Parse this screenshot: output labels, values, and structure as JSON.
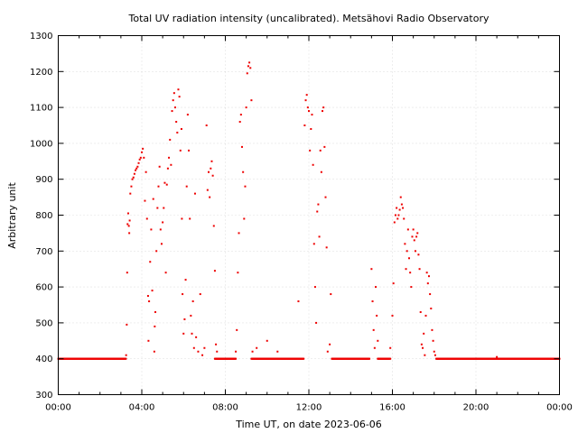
{
  "chart_data": {
    "type": "scatter",
    "title": "Total UV radiation intensity (uncalibrated). Metsähovi Radio Observatory",
    "xlabel": "Time UT, on date 2023-06-06",
    "ylabel": "Arbitrary unit",
    "xlim": [
      "00:00",
      "24:00"
    ],
    "ylim": [
      300,
      1300
    ],
    "x_ticks": [
      "00:00",
      "04:00",
      "08:00",
      "12:00",
      "16:00",
      "20:00",
      "00:00"
    ],
    "y_ticks": [
      300,
      400,
      500,
      600,
      700,
      800,
      900,
      1000,
      1100,
      1200,
      1300
    ],
    "grid": true,
    "marker_color": "#ee0000",
    "series": [
      {
        "baseline_value": 400,
        "baseline_ranges_hours": [
          [
            0.0,
            3.25
          ],
          [
            7.5,
            8.5
          ],
          [
            9.25,
            11.75
          ],
          [
            13.1,
            14.9
          ],
          [
            15.3,
            15.9
          ],
          [
            18.1,
            24.0
          ]
        ],
        "points": [
          [
            3.25,
            410
          ],
          [
            3.28,
            495
          ],
          [
            3.3,
            640
          ],
          [
            3.32,
            775
          ],
          [
            3.35,
            805
          ],
          [
            3.38,
            770
          ],
          [
            3.4,
            750
          ],
          [
            3.42,
            785
          ],
          [
            3.45,
            860
          ],
          [
            3.5,
            880
          ],
          [
            3.55,
            900
          ],
          [
            3.6,
            905
          ],
          [
            3.65,
            915
          ],
          [
            3.7,
            925
          ],
          [
            3.75,
            930
          ],
          [
            3.8,
            935
          ],
          [
            3.85,
            945
          ],
          [
            3.9,
            955
          ],
          [
            3.95,
            960
          ],
          [
            4.0,
            975
          ],
          [
            4.05,
            985
          ],
          [
            4.1,
            960
          ],
          [
            4.15,
            840
          ],
          [
            4.2,
            920
          ],
          [
            4.25,
            790
          ],
          [
            4.3,
            575
          ],
          [
            4.32,
            450
          ],
          [
            4.35,
            560
          ],
          [
            4.4,
            670
          ],
          [
            4.45,
            760
          ],
          [
            4.5,
            590
          ],
          [
            4.55,
            845
          ],
          [
            4.6,
            420
          ],
          [
            4.62,
            490
          ],
          [
            4.65,
            530
          ],
          [
            4.7,
            700
          ],
          [
            4.75,
            820
          ],
          [
            4.8,
            880
          ],
          [
            4.85,
            935
          ],
          [
            4.9,
            760
          ],
          [
            4.95,
            720
          ],
          [
            5.0,
            780
          ],
          [
            5.05,
            820
          ],
          [
            5.1,
            890
          ],
          [
            5.15,
            640
          ],
          [
            5.2,
            885
          ],
          [
            5.25,
            930
          ],
          [
            5.3,
            960
          ],
          [
            5.35,
            1010
          ],
          [
            5.4,
            940
          ],
          [
            5.45,
            1090
          ],
          [
            5.5,
            1120
          ],
          [
            5.55,
            1140
          ],
          [
            5.6,
            1100
          ],
          [
            5.65,
            1060
          ],
          [
            5.7,
            1030
          ],
          [
            5.75,
            1150
          ],
          [
            5.8,
            1130
          ],
          [
            5.85,
            980
          ],
          [
            5.9,
            1040
          ],
          [
            5.92,
            790
          ],
          [
            5.95,
            580
          ],
          [
            6.0,
            470
          ],
          [
            6.05,
            510
          ],
          [
            6.1,
            620
          ],
          [
            6.15,
            880
          ],
          [
            6.2,
            1080
          ],
          [
            6.25,
            980
          ],
          [
            6.3,
            790
          ],
          [
            6.35,
            520
          ],
          [
            6.4,
            470
          ],
          [
            6.45,
            560
          ],
          [
            6.5,
            430
          ],
          [
            6.55,
            860
          ],
          [
            6.6,
            460
          ],
          [
            6.7,
            420
          ],
          [
            6.8,
            580
          ],
          [
            6.9,
            410
          ],
          [
            7.0,
            430
          ],
          [
            7.1,
            1050
          ],
          [
            7.15,
            870
          ],
          [
            7.2,
            920
          ],
          [
            7.25,
            850
          ],
          [
            7.3,
            930
          ],
          [
            7.35,
            950
          ],
          [
            7.4,
            910
          ],
          [
            7.45,
            770
          ],
          [
            7.5,
            645
          ],
          [
            7.55,
            440
          ],
          [
            7.6,
            420
          ],
          [
            8.5,
            420
          ],
          [
            8.55,
            480
          ],
          [
            8.6,
            640
          ],
          [
            8.65,
            750
          ],
          [
            8.7,
            1060
          ],
          [
            8.75,
            1080
          ],
          [
            8.8,
            990
          ],
          [
            8.85,
            920
          ],
          [
            8.9,
            790
          ],
          [
            8.95,
            880
          ],
          [
            9.0,
            1100
          ],
          [
            9.05,
            1195
          ],
          [
            9.1,
            1215
          ],
          [
            9.15,
            1225
          ],
          [
            9.2,
            1210
          ],
          [
            9.25,
            1120
          ],
          [
            9.3,
            420
          ],
          [
            9.5,
            430
          ],
          [
            10.0,
            450
          ],
          [
            10.5,
            420
          ],
          [
            11.5,
            560
          ],
          [
            11.8,
            1050
          ],
          [
            11.85,
            1120
          ],
          [
            11.9,
            1135
          ],
          [
            11.95,
            1100
          ],
          [
            12.0,
            1090
          ],
          [
            12.05,
            980
          ],
          [
            12.1,
            1040
          ],
          [
            12.15,
            1080
          ],
          [
            12.2,
            940
          ],
          [
            12.25,
            720
          ],
          [
            12.3,
            600
          ],
          [
            12.35,
            500
          ],
          [
            12.4,
            810
          ],
          [
            12.45,
            830
          ],
          [
            12.5,
            740
          ],
          [
            12.55,
            980
          ],
          [
            12.6,
            920
          ],
          [
            12.65,
            1090
          ],
          [
            12.7,
            1100
          ],
          [
            12.75,
            990
          ],
          [
            12.8,
            850
          ],
          [
            12.85,
            710
          ],
          [
            12.9,
            420
          ],
          [
            13.0,
            440
          ],
          [
            13.05,
            580
          ],
          [
            15.0,
            650
          ],
          [
            15.05,
            560
          ],
          [
            15.1,
            480
          ],
          [
            15.15,
            430
          ],
          [
            15.2,
            600
          ],
          [
            15.25,
            520
          ],
          [
            15.3,
            450
          ],
          [
            15.9,
            430
          ],
          [
            16.0,
            520
          ],
          [
            16.05,
            610
          ],
          [
            16.1,
            780
          ],
          [
            16.15,
            800
          ],
          [
            16.2,
            820
          ],
          [
            16.25,
            790
          ],
          [
            16.3,
            800
          ],
          [
            16.35,
            815
          ],
          [
            16.4,
            850
          ],
          [
            16.45,
            830
          ],
          [
            16.5,
            820
          ],
          [
            16.55,
            790
          ],
          [
            16.6,
            720
          ],
          [
            16.65,
            650
          ],
          [
            16.7,
            700
          ],
          [
            16.75,
            760
          ],
          [
            16.8,
            680
          ],
          [
            16.85,
            640
          ],
          [
            16.9,
            600
          ],
          [
            16.95,
            740
          ],
          [
            17.0,
            760
          ],
          [
            17.05,
            730
          ],
          [
            17.1,
            700
          ],
          [
            17.15,
            740
          ],
          [
            17.2,
            750
          ],
          [
            17.25,
            690
          ],
          [
            17.3,
            650
          ],
          [
            17.35,
            530
          ],
          [
            17.4,
            440
          ],
          [
            17.45,
            430
          ],
          [
            17.5,
            470
          ],
          [
            17.55,
            410
          ],
          [
            17.6,
            520
          ],
          [
            17.65,
            640
          ],
          [
            17.7,
            610
          ],
          [
            17.75,
            630
          ],
          [
            17.8,
            580
          ],
          [
            17.85,
            540
          ],
          [
            17.9,
            480
          ],
          [
            17.95,
            450
          ],
          [
            18.0,
            420
          ],
          [
            18.05,
            410
          ],
          [
            21.0,
            405
          ]
        ]
      }
    ]
  }
}
